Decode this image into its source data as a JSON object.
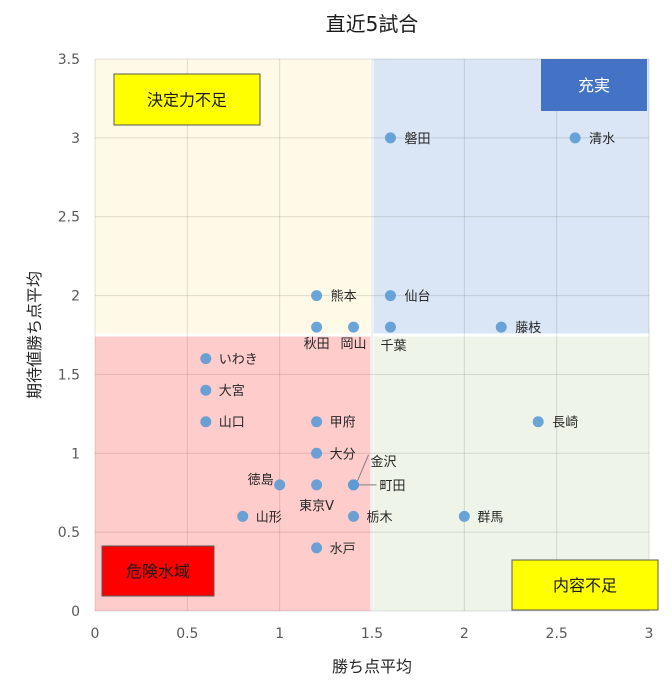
{
  "chart_data": {
    "type": "scatter",
    "title": "直近5試合",
    "xlabel": "勝ち点平均",
    "ylabel": "期待値勝ち点平均",
    "xlim": [
      0,
      3
    ],
    "ylim": [
      0,
      3.5
    ],
    "xticks": [
      "0",
      "0.5",
      "1",
      "1.5",
      "2",
      "2.5",
      "3"
    ],
    "yticks": [
      "0",
      "0.5",
      "1",
      "1.5",
      "2",
      "2.5",
      "3",
      "3.5"
    ],
    "grid": true,
    "threshold_x": 1.5,
    "threshold_y": 1.75,
    "quadrants": [
      {
        "label": "決定力不足",
        "color": "#fff9e8",
        "box_color": "#ffff00",
        "text_color": "#1a1a1a"
      },
      {
        "label": "充実",
        "color": "#dae6f5",
        "box_color": "#4472c4",
        "text_color": "#ffffff"
      },
      {
        "label": "危険水域",
        "color": "#ffcccc",
        "box_color": "#ff0000",
        "text_color": "#1a1a1a"
      },
      {
        "label": "内容不足",
        "color": "#eef5e8",
        "box_color": "#ffff00",
        "text_color": "#1a1a1a"
      }
    ],
    "point_color": "#5b9bd5",
    "points": [
      {
        "name": "磐田",
        "x": 1.6,
        "y": 3.0
      },
      {
        "name": "清水",
        "x": 2.6,
        "y": 3.0
      },
      {
        "name": "熊本",
        "x": 1.2,
        "y": 2.0
      },
      {
        "name": "仙台",
        "x": 1.6,
        "y": 2.0
      },
      {
        "name": "秋田",
        "x": 1.2,
        "y": 1.8
      },
      {
        "name": "岡山",
        "x": 1.4,
        "y": 1.8
      },
      {
        "name": "千葉",
        "x": 1.6,
        "y": 1.8
      },
      {
        "name": "藤枝",
        "x": 2.2,
        "y": 1.8
      },
      {
        "name": "いわき",
        "x": 0.6,
        "y": 1.6
      },
      {
        "name": "大宮",
        "x": 0.6,
        "y": 1.4
      },
      {
        "name": "山口",
        "x": 0.6,
        "y": 1.2
      },
      {
        "name": "甲府",
        "x": 1.2,
        "y": 1.2
      },
      {
        "name": "長崎",
        "x": 2.4,
        "y": 1.2
      },
      {
        "name": "大分",
        "x": 1.2,
        "y": 1.0
      },
      {
        "name": "徳島",
        "x": 1.0,
        "y": 0.8
      },
      {
        "name": "東京V",
        "x": 1.2,
        "y": 0.8
      },
      {
        "name": "金沢",
        "x": 1.4,
        "y": 0.8
      },
      {
        "name": "町田",
        "x": 1.4,
        "y": 0.8
      },
      {
        "name": "山形",
        "x": 0.8,
        "y": 0.6
      },
      {
        "name": "栃木",
        "x": 1.4,
        "y": 0.6
      },
      {
        "name": "群馬",
        "x": 2.0,
        "y": 0.6
      },
      {
        "name": "水戸",
        "x": 1.2,
        "y": 0.4
      }
    ]
  }
}
